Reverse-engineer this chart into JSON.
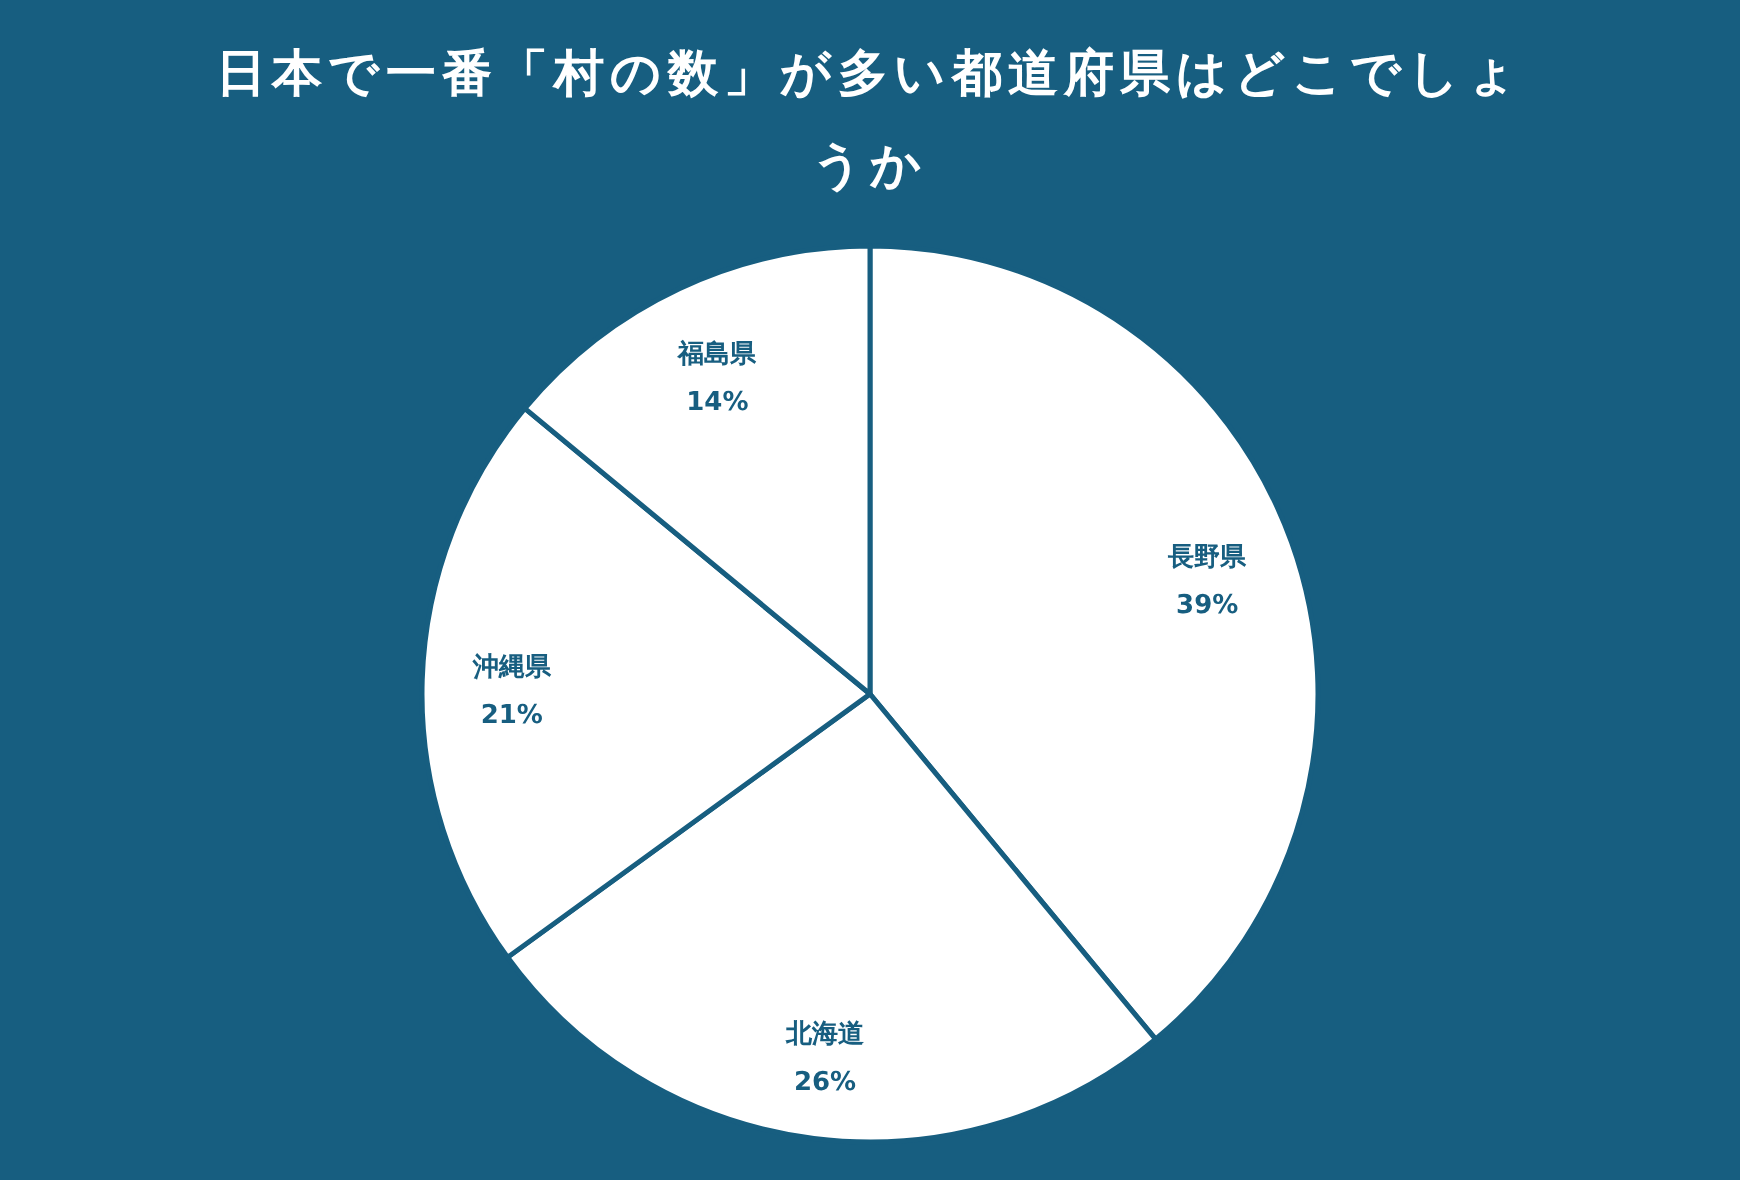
{
  "chart_data": {
    "type": "pie",
    "title": "日本で一番「村の数」が多い都道府県はどこでしょうか",
    "categories": [
      "長野県",
      "北海道",
      "沖縄県",
      "福島県"
    ],
    "values": [
      39,
      26,
      21,
      14
    ],
    "value_labels": [
      "39%",
      "26%",
      "21%",
      "14%"
    ],
    "colors": [
      "#ffffff",
      "#ffffff",
      "#ffffff",
      "#ffffff"
    ]
  }
}
